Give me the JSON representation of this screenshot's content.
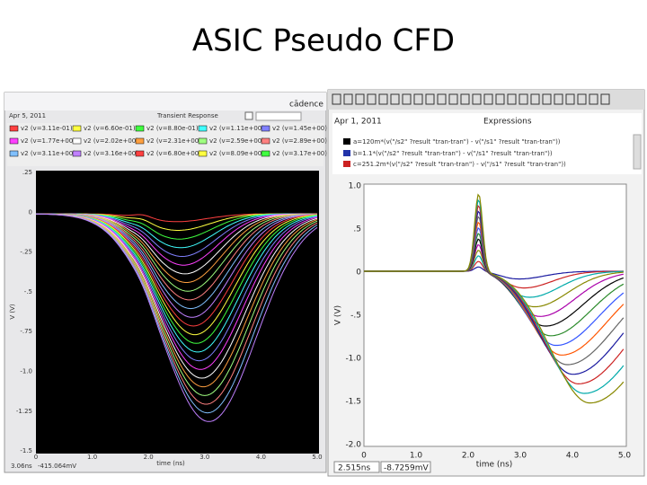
{
  "title": "ASIC  Pseudo CFD",
  "left": {
    "brand": "cādence",
    "date": "Apr 5, 2011",
    "plot_title": "Transient Response",
    "legend": [
      "v2 (v=3.11e-01)",
      "v2 (v=6.60e-01)",
      "v2 (v=8.80e-01)",
      "v2 (v=1.11e+00)",
      "v2 (v=1.45e+00)",
      "v2 (v=1.77e+00)",
      "v2 (v=2.02e+00)",
      "v2 (v=2.31e+00)",
      "v2 (v=2.59e+00)",
      "v2 (v=2.89e+00)",
      "v2 (v=3.11e+00)",
      "v2 (v=3.16e+00)",
      "v2 (v=6.80e+00)",
      "v2 (v=8.09e+00)",
      "v2 (v=3.17e+00)"
    ],
    "yticks": [
      ".25",
      "0",
      "-.25",
      "-.5",
      "-.75",
      "-1.0",
      "-1.25",
      "-1.5"
    ],
    "xticks": [
      "0",
      "1.0",
      "2.0",
      "3.0",
      "4.0",
      "5.0"
    ],
    "xlabel": "time (ns)",
    "ylabel": "V (V)",
    "status": [
      "3.06ns",
      "-415.064mV"
    ]
  },
  "right": {
    "date": "Apr 1, 2011",
    "plot_title": "Expressions",
    "expressions": [
      "a=120m*(v(\"/s2\" ?result \"tran-tran\") - v(\"/s1\" ?result \"tran-tran\"))",
      "b=1.1*(v(\"/s2\" ?result \"tran-tran\") - v(\"/s1\" ?result \"tran-tran\"))",
      "c=251.2m*(v(\"/s2\" ?result \"tran-tran\") - v(\"/s1\" ?result \"tran-tran\"))"
    ],
    "yticks": [
      "1.0",
      ".5",
      "0",
      "-.5",
      "-1.0",
      "-1.5",
      "-2.0"
    ],
    "xticks": [
      "0",
      "1.0",
      "2.0",
      "3.0",
      "4.0",
      "5.0"
    ],
    "xlabel": "time (ns)",
    "ylabel": "V (V)",
    "status": [
      "2.515ns",
      "-8.7259mV"
    ]
  }
}
